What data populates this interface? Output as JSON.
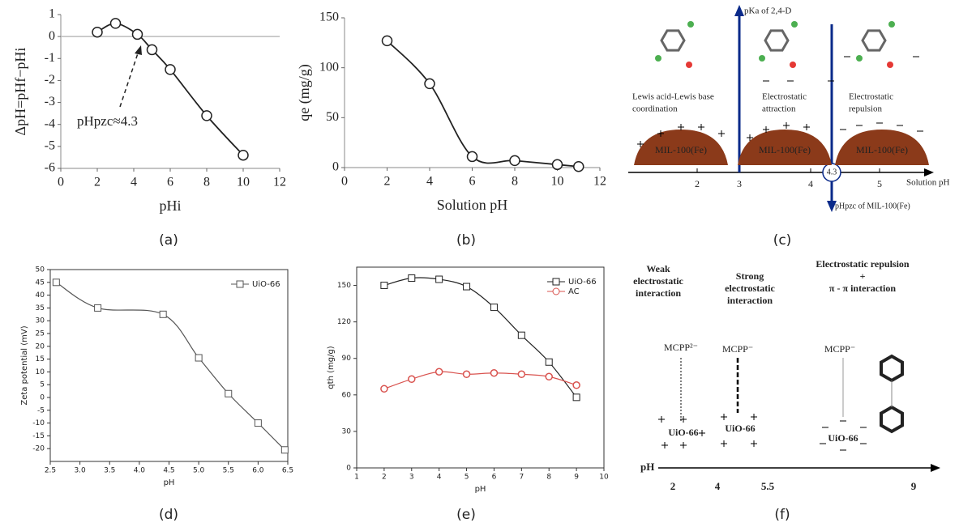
{
  "chart_data": [
    {
      "type": "line",
      "x_label": "pHi",
      "y_label": "ΔpH=pHf−pHi",
      "annotation": "pHpzc≈4.3",
      "x": [
        2,
        3,
        4.2,
        5,
        6,
        8,
        10
      ],
      "series": [
        {
          "color": "#222222",
          "marker": "circle",
          "values": [
            0.2,
            0.6,
            0.1,
            -0.6,
            -1.5,
            -3.6,
            -5.4
          ]
        }
      ],
      "xlim": [
        0,
        12
      ],
      "xticks": [
        0,
        2,
        4,
        6,
        8,
        10,
        12
      ],
      "ylim": [
        -6,
        1
      ],
      "yticks": [
        -6,
        -5,
        -4,
        -3,
        -2,
        -1,
        0,
        1
      ],
      "reference_line": 0
    },
    {
      "type": "line",
      "x_label": "Solution pH",
      "y_label": "qe (mg/g)",
      "x": [
        2,
        4,
        6,
        8,
        10,
        11
      ],
      "series": [
        {
          "color": "#222222",
          "marker": "circle",
          "values": [
            127,
            84,
            11,
            7,
            3,
            1
          ]
        }
      ],
      "xlim": [
        0,
        12
      ],
      "xticks": [
        0,
        2,
        4,
        6,
        8,
        10,
        12
      ],
      "ylim": [
        0,
        150
      ],
      "yticks": [
        0,
        50,
        100,
        150
      ]
    },
    {
      "type": "line",
      "x_label": "pH",
      "y_label": "Zeta potential (mV)",
      "x": [
        2.6,
        3.3,
        4.4,
        5,
        5.5,
        6,
        6.45
      ],
      "series": [
        {
          "name": "UiO-66",
          "color": "#555555",
          "marker": "square",
          "values": [
            45,
            35,
            32.5,
            15.5,
            1.5,
            -10,
            -20.5
          ]
        }
      ],
      "xlim": [
        2.5,
        6.5
      ],
      "xticks": [
        2.5,
        {
          "value": 3,
          "label": "3.0"
        },
        3.5,
        {
          "value": 4,
          "label": "4.0"
        },
        4.5,
        {
          "value": 5,
          "label": "5.0"
        },
        5.5,
        {
          "value": 6,
          "label": "6.0"
        },
        6.5
      ],
      "ylim": [
        -25,
        50
      ],
      "yticks": [
        -20,
        -15,
        -10,
        -5,
        0,
        5,
        10,
        15,
        20,
        25,
        30,
        35,
        40,
        45,
        50
      ]
    },
    {
      "type": "line",
      "x_label": "pH",
      "y_label": "qth (mg/g)",
      "x": [
        2,
        3,
        4,
        5,
        6,
        7,
        8,
        9
      ],
      "series": [
        {
          "name": "UiO-66",
          "color": "#222222",
          "marker": "square",
          "values": [
            150,
            156,
            155,
            149,
            132,
            109,
            87,
            58
          ]
        },
        {
          "name": "AC",
          "color": "#d9534f",
          "marker": "circle",
          "values": [
            65,
            73,
            79,
            77,
            78,
            77,
            75,
            68
          ]
        }
      ],
      "xlim": [
        1,
        10
      ],
      "xticks": [
        1,
        2,
        3,
        4,
        5,
        6,
        7,
        8,
        9,
        10
      ],
      "ylim": [
        0,
        165
      ],
      "yticks": [
        0,
        30,
        60,
        90,
        120,
        150
      ]
    }
  ],
  "diagram_c": {
    "pka_label": "pKa of 2,4-D",
    "regions": [
      [
        "Lewis acid-Lewis base",
        "coordination"
      ],
      [
        "Electrostatic",
        "attraction"
      ],
      [
        "Electrostatic",
        "repulsion"
      ]
    ],
    "material": [
      "MIL-100(Fe)",
      "MIL-100(Fe)",
      "MIL-100(Fe)"
    ],
    "axis_label": "Solution pH",
    "ticks": [
      "2",
      "3",
      "4",
      "5"
    ],
    "pzc_value": "4.3",
    "pzc_label": "pHpzc of MIL-100(Fe)"
  },
  "diagram_f": {
    "headings": [
      [
        "Weak",
        "electrostatic",
        "interaction"
      ],
      [
        "Strong",
        "electrostatic",
        "interaction"
      ],
      [
        "Electrostatic repulsion",
        "+",
        "π - π interaction"
      ]
    ],
    "species": [
      "MCPP²⁻",
      "MCPP⁻",
      "MCPP⁻"
    ],
    "sorbent": [
      "UiO-66",
      "UiO-66",
      "UiO-66"
    ],
    "axis_label": "pH",
    "ticks": [
      "2",
      "4",
      "5.5",
      "9"
    ]
  },
  "panel_labels": [
    "(a)",
    "(b)",
    "(c)",
    "(d)",
    "(e)",
    "(f)"
  ]
}
